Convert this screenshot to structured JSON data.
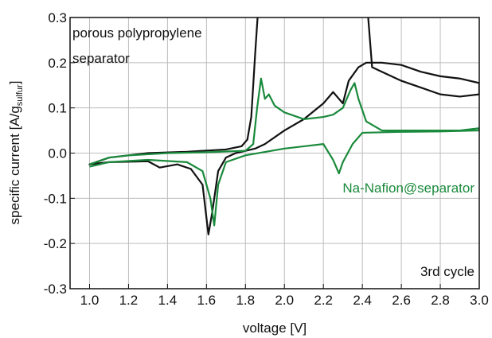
{
  "chart_data": {
    "type": "line",
    "xlabel": "voltage [V]",
    "ylabel": "specific current [A/g",
    "ylabel_sub": "sulfur",
    "ylabel_end": "]",
    "annotations": [
      "porous polypropylene",
      "separator",
      "Na-Nafion@separator",
      "3rd cycle"
    ],
    "xlim": [
      0.9,
      3.0
    ],
    "ylim": [
      -0.3,
      0.3
    ],
    "xticks": [
      {
        "value": 1.0,
        "label": "1.0"
      },
      1.2,
      1.4,
      1.6,
      1.8,
      {
        "value": 2.0,
        "label": "2.0"
      },
      2.2,
      2.4,
      2.6,
      2.8,
      {
        "value": 3.0,
        "label": "3.0"
      }
    ],
    "yticks": [
      -0.3,
      -0.2,
      -0.1,
      {
        "value": 0,
        "label": "0.0"
      },
      0.1,
      0.2,
      0.3
    ],
    "grid": true,
    "series": [
      {
        "color": "#111111",
        "x": [
          1.87,
          1.85,
          1.83,
          1.81,
          1.78,
          1.7,
          1.5,
          1.3,
          1.1,
          1.0,
          1.1,
          1.3,
          1.36,
          1.45,
          1.52,
          1.58,
          1.61,
          1.63,
          1.66,
          1.7,
          1.75,
          1.8,
          1.85,
          1.9,
          2.0,
          2.1,
          2.2,
          2.25,
          2.28,
          2.3,
          2.33,
          2.38,
          2.42,
          2.5,
          2.6,
          2.7,
          2.8,
          2.9,
          3.0,
          3.0,
          2.9,
          2.8,
          2.7,
          2.6,
          2.5,
          2.45,
          2.43,
          2.42
        ],
        "values": [
          0.35,
          0.22,
          0.08,
          0.03,
          0.015,
          0.008,
          0.003,
          0,
          -0.01,
          -0.025,
          -0.02,
          -0.018,
          -0.032,
          -0.025,
          -0.035,
          -0.07,
          -0.18,
          -0.13,
          -0.04,
          -0.01,
          0,
          0.005,
          0.01,
          0.02,
          0.05,
          0.075,
          0.11,
          0.135,
          0.12,
          0.11,
          0.16,
          0.19,
          0.2,
          0.2,
          0.195,
          0.18,
          0.17,
          0.165,
          0.155,
          0.13,
          0.125,
          0.13,
          0.145,
          0.16,
          0.18,
          0.19,
          0.3,
          0.35
        ]
      },
      {
        "color": "#1a8a3c",
        "x": [
          1.0,
          1.1,
          1.2,
          1.4,
          1.6,
          1.8,
          1.84,
          1.86,
          1.88,
          1.9,
          1.92,
          1.95,
          2.0,
          2.1,
          2.2,
          2.25,
          2.3,
          2.34,
          2.36,
          2.38,
          2.42,
          2.5,
          2.7,
          2.9,
          3.0,
          3.0,
          2.8,
          2.6,
          2.4,
          2.35,
          2.3,
          2.28,
          2.25,
          2.2,
          2.0,
          1.8,
          1.7,
          1.66,
          1.64,
          1.62,
          1.58,
          1.5,
          1.3,
          1.1,
          1.0
        ],
        "values": [
          -0.025,
          -0.01,
          -0.005,
          0,
          0.002,
          0.005,
          0.02,
          0.1,
          0.165,
          0.12,
          0.13,
          0.105,
          0.09,
          0.075,
          0.08,
          0.085,
          0.1,
          0.14,
          0.155,
          0.12,
          0.07,
          0.05,
          0.05,
          0.05,
          0.055,
          0.05,
          0.048,
          0.047,
          0.045,
          0.02,
          -0.02,
          -0.045,
          -0.015,
          0.02,
          0.01,
          -0.005,
          -0.02,
          -0.07,
          -0.16,
          -0.1,
          -0.04,
          -0.02,
          -0.015,
          -0.02,
          -0.03
        ]
      }
    ]
  }
}
